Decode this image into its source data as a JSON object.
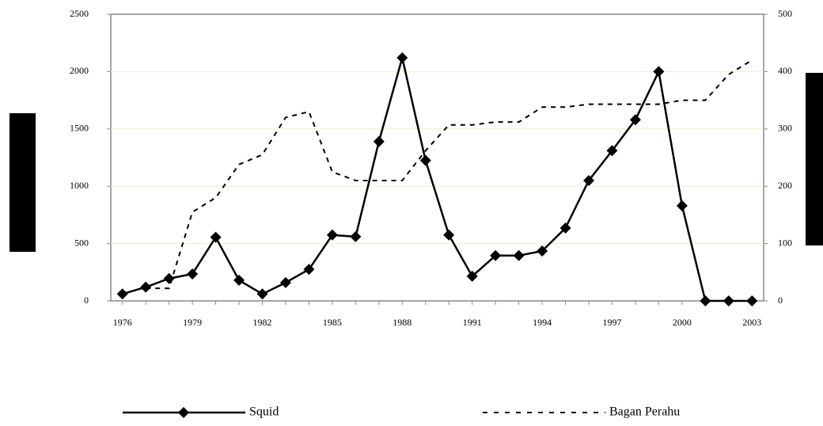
{
  "chart_data": {
    "type": "line",
    "x": [
      1976,
      1977,
      1978,
      1979,
      1980,
      1981,
      1982,
      1983,
      1984,
      1985,
      1986,
      1987,
      1988,
      1989,
      1990,
      1991,
      1992,
      1993,
      1994,
      1995,
      1996,
      1997,
      1998,
      1999,
      2000,
      2001,
      2002,
      2003
    ],
    "xlim": [
      1975.5,
      2003.5
    ],
    "xticks": [
      1976,
      1979,
      1982,
      1985,
      1988,
      1991,
      1994,
      1997,
      2000,
      2003
    ],
    "ylim": [
      0,
      2500
    ],
    "yticks": [
      0,
      500,
      1000,
      1500,
      2000,
      2500
    ],
    "y2lim": [
      0,
      500
    ],
    "y2ticks": [
      0,
      100,
      200,
      300,
      400,
      500
    ],
    "grid": true,
    "series": [
      {
        "name": "Squid",
        "color": "#000000",
        "style": "solid",
        "marker": "diamond",
        "values": [
          60,
          120,
          195,
          235,
          555,
          180,
          60,
          160,
          275,
          575,
          560,
          1390,
          2120,
          1225,
          575,
          215,
          395,
          395,
          435,
          635,
          1050,
          1310,
          1580,
          2000,
          830,
          0,
          0,
          0
        ]
      },
      {
        "name": "Bagan Perahu",
        "color": "#000000",
        "style": "dashed",
        "axis": "y2",
        "values": [
          null,
          22,
          22,
          155,
          180,
          238,
          255,
          320,
          330,
          225,
          210,
          210,
          210,
          262,
          307,
          307,
          312,
          312,
          338,
          338,
          343,
          343,
          343,
          343,
          350,
          350,
          395,
          420
        ]
      }
    ]
  }
}
